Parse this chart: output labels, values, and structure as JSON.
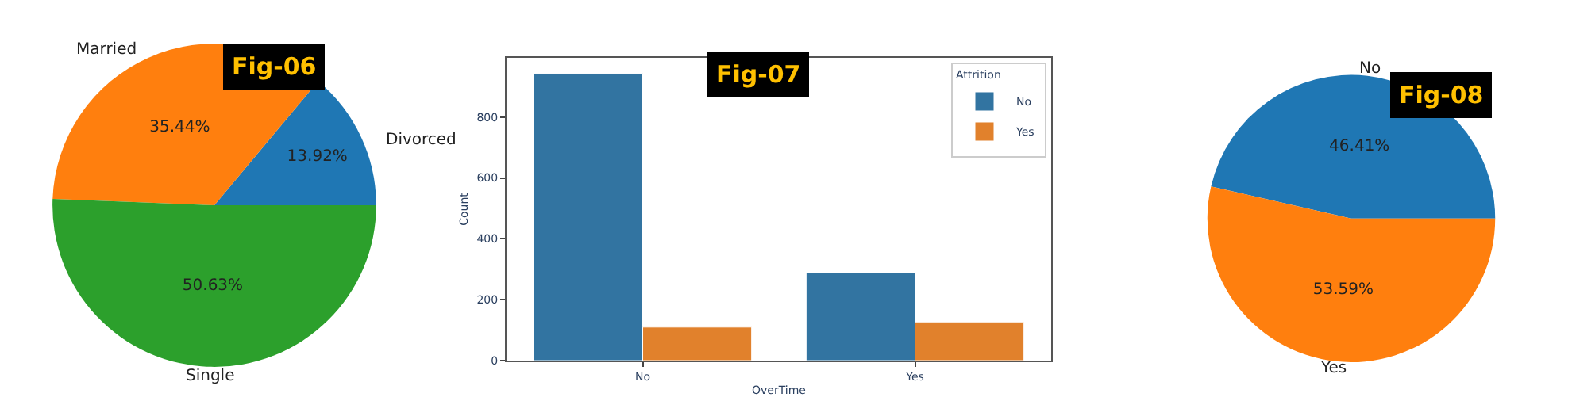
{
  "chart_data": [
    {
      "type": "pie",
      "title": "Fig-06",
      "categories": [
        "Divorced",
        "Married",
        "Single"
      ],
      "values": [
        13.92,
        35.44,
        50.63
      ],
      "colors": [
        "#1f77b4",
        "#ff7f0e",
        "#2ca02c"
      ],
      "value_labels": [
        "13.92%",
        "35.44%",
        "50.63%"
      ]
    },
    {
      "type": "bar",
      "title": "Fig-07",
      "categories": [
        "No",
        "Yes"
      ],
      "xlabel": "OverTime",
      "ylabel": "Count",
      "legend_title": "Attrition",
      "legend": "top right",
      "ylim": [
        0,
        995
      ],
      "yticks": [
        0,
        200,
        400,
        600,
        800
      ],
      "series": [
        {
          "name": "No",
          "color": "#3274a1",
          "values": [
            944,
            289
          ]
        },
        {
          "name": "Yes",
          "color": "#e1812c",
          "values": [
            110,
            127
          ]
        }
      ]
    },
    {
      "type": "pie",
      "title": "Fig-08",
      "categories": [
        "No",
        "Yes"
      ],
      "values": [
        46.41,
        53.59
      ],
      "colors": [
        "#1f77b4",
        "#ff7f0e"
      ],
      "value_labels": [
        "46.41%",
        "53.59%"
      ]
    }
  ]
}
